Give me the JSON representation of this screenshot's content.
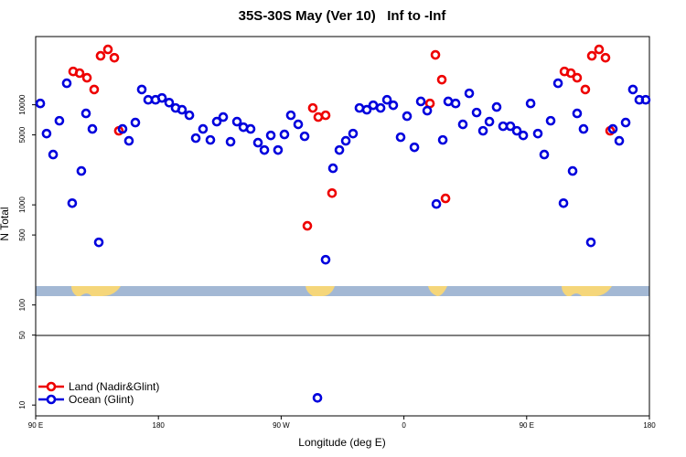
{
  "chart_data": {
    "type": "scatter",
    "title": "35S-30S May (Ver 10)   Inf to -Inf",
    "xlabel": "Longitude (deg E)",
    "ylabel": "N Total",
    "log_y": true,
    "legend": "lower left",
    "xlim": [
      90,
      540
    ],
    "ylim": [
      7.8,
      48000
    ],
    "xticks": [
      {
        "value": 90,
        "label": "90 E"
      },
      180,
      {
        "value": 270,
        "label": "90 W"
      },
      {
        "value": 360,
        "label": "0"
      },
      {
        "value": 450,
        "label": "90 E"
      },
      {
        "value": 540,
        "label": "180"
      }
    ],
    "yticks": [
      10,
      50,
      100,
      500,
      1000,
      5000,
      10000
    ],
    "series": [
      {
        "name": "Land (Nadir&Glint)",
        "color": "#ee0000",
        "x": [
          117.5,
          122.2,
          127.6,
          132.9,
          137.6,
          143.0,
          147.7,
          151.0,
          289.2,
          293.2,
          297.2,
          302.6,
          307.3,
          379.1,
          383.1,
          387.8,
          390.5,
          477.7,
          482.4,
          487.0,
          493.0,
          497.8,
          503.1,
          507.8,
          511.2
        ],
        "values": [
          21500,
          20700,
          18600,
          14200,
          30800,
          35700,
          29500,
          5490,
          617,
          9290,
          7530,
          7850,
          1310,
          10300,
          31500,
          17800,
          1160,
          21500,
          20700,
          18600,
          14200,
          30800,
          35700,
          29500,
          5490
        ]
      },
      {
        "name": "Ocean (Glint)",
        "color": "#0000dd",
        "x": [
          93.4,
          98.0,
          102.8,
          107.4,
          112.8,
          116.8,
          123.5,
          126.9,
          131.6,
          136.3,
          153.7,
          158.4,
          163.1,
          167.8,
          172.5,
          177.9,
          182.6,
          187.9,
          192.6,
          197.3,
          202.7,
          207.4,
          212.7,
          218.1,
          222.8,
          227.5,
          232.9,
          237.6,
          242.3,
          247.6,
          253.0,
          257.7,
          262.4,
          267.7,
          272.4,
          277.1,
          282.5,
          287.2,
          296.6,
          302.6,
          308.0,
          312.7,
          317.4,
          322.7,
          327.4,
          332.8,
          337.5,
          342.9,
          347.6,
          352.2,
          357.6,
          362.3,
          367.7,
          372.4,
          377.1,
          383.8,
          388.5,
          392.5,
          397.9,
          403.2,
          407.9,
          413.3,
          418.0,
          422.7,
          428.0,
          432.7,
          438.1,
          442.8,
          447.5,
          452.9,
          458.2,
          462.9,
          467.6,
          473.0,
          477.0,
          483.7,
          487.0,
          491.7,
          497.1,
          513.2,
          517.9,
          522.6,
          527.9,
          532.6,
          537.3
        ],
        "values": [
          10300,
          5150,
          3180,
          6920,
          16400,
          1040,
          2180,
          8190,
          5730,
          422,
          5730,
          4360,
          6640,
          14200,
          11200,
          11200,
          11700,
          10500,
          9290,
          8910,
          7850,
          4640,
          5730,
          4450,
          6780,
          7530,
          4270,
          6780,
          5970,
          5730,
          4180,
          3530,
          4940,
          3530,
          5050,
          7850,
          6370,
          4840,
          11.8,
          283,
          2320,
          3530,
          4360,
          5150,
          9290,
          8910,
          9890,
          9290,
          11200,
          9890,
          4740,
          7690,
          3760,
          10800,
          8730,
          1020,
          4450,
          10800,
          10300,
          6370,
          13000,
          8360,
          5490,
          6780,
          9490,
          6100,
          6100,
          5490,
          4940,
          10300,
          5150,
          3180,
          6920,
          16400,
          1040,
          2180,
          8190,
          5730,
          422,
          5730,
          4360,
          6640,
          14200,
          11200,
          11200
        ]
      }
    ]
  }
}
